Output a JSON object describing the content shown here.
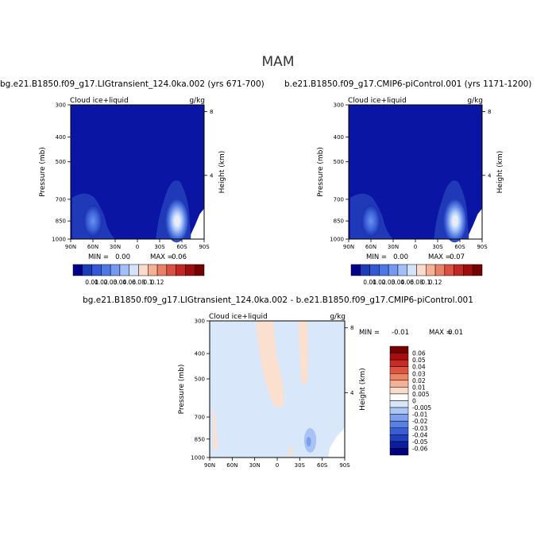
{
  "season": "MAM",
  "chart_data": [
    {
      "type": "heatmap",
      "title": "bg.e21.B1850.f09_g17.LIGtransient_124.0ka.002 (yrs 671-700)",
      "variable": "Cloud ice+liquid",
      "units": "g/kg",
      "ylabel": "Pressure (mb)",
      "ylabel_right": "Height (km)",
      "x_ticks": [
        "90N",
        "60N",
        "30N",
        "0",
        "30S",
        "60S",
        "90S"
      ],
      "y_ticks": [
        "300",
        "400",
        "500",
        "700",
        "850",
        "1000"
      ],
      "y_ticks_right": [
        "8",
        "4"
      ],
      "min_label": "MIN =",
      "min_value": "0.00",
      "max_label": "MAX =",
      "max_value": "0.06",
      "colorbar_labels": [
        "0.01",
        "0.02",
        "0.03",
        "0.04",
        "0.06",
        "0.08",
        "0.1",
        "0.12"
      ],
      "maxima": [
        {
          "lat": -55,
          "p": 850,
          "value": 0.06
        },
        {
          "lat": 58,
          "p": 850,
          "value": 0.02
        }
      ]
    },
    {
      "type": "heatmap",
      "title": "b.e21.B1850.f09_g17.CMIP6-piControl.001 (yrs 1171-1200)",
      "variable": "Cloud ice+liquid",
      "units": "g/kg",
      "ylabel": "Pressure (mb)",
      "ylabel_right": "Height (km)",
      "x_ticks": [
        "90N",
        "60N",
        "30N",
        "0",
        "30S",
        "60S",
        "90S"
      ],
      "y_ticks": [
        "300",
        "400",
        "500",
        "700",
        "850",
        "1000"
      ],
      "y_ticks_right": [
        "8",
        "4"
      ],
      "min_label": "MIN =",
      "min_value": "0.00",
      "max_label": "MAX =",
      "max_value": "0.07",
      "colorbar_labels": [
        "0.01",
        "0.02",
        "0.03",
        "0.04",
        "0.06",
        "0.08",
        "0.1",
        "0.12"
      ],
      "maxima": [
        {
          "lat": -52,
          "p": 850,
          "value": 0.07
        },
        {
          "lat": 58,
          "p": 850,
          "value": 0.02
        }
      ]
    },
    {
      "type": "heatmap",
      "title": "bg.e21.B1850.f09_g17.LIGtransient_124.0ka.002 - b.e21.B1850.f09_g17.CMIP6-piControl.001",
      "variable": "Cloud ice+liquid",
      "units": "g/kg",
      "ylabel": "Pressure (mb)",
      "ylabel_right": "Height (km)",
      "x_ticks": [
        "90N",
        "60N",
        "30N",
        "0",
        "30S",
        "60S",
        "90S"
      ],
      "y_ticks": [
        "300",
        "400",
        "500",
        "700",
        "850",
        "1000"
      ],
      "y_ticks_right": [
        "8",
        "4"
      ],
      "min_label": "MIN =",
      "min_value": "-0.01",
      "max_label": "MAX =",
      "max_value": "0.01",
      "legend_labels": [
        "0.06",
        "0.05",
        "0.04",
        "0.03",
        "0.02",
        "0.01",
        "0.005",
        "0",
        "-0.005",
        "-0.01",
        "-0.02",
        "-0.03",
        "-0.04",
        "-0.05",
        "-0.06"
      ]
    }
  ],
  "colors": {
    "seq": [
      "#00008b",
      "#1d3db8",
      "#3359d6",
      "#4d78e6",
      "#7399f0",
      "#a3bff7",
      "#d4e2fb",
      "#fbdccc",
      "#f5b096",
      "#ea8066",
      "#db5040",
      "#c42722",
      "#9e0c0c",
      "#760000"
    ],
    "div": [
      "#760000",
      "#aa0d0d",
      "#c82b22",
      "#dc5540",
      "#ec8466",
      "#f5b096",
      "#fbdcc9",
      "#ffffff",
      "#d8e6fa",
      "#abc6f5",
      "#7e9fee",
      "#5a80e4",
      "#3a5ed7",
      "#1f3fbf",
      "#0b1f9e",
      "#00007f"
    ]
  }
}
